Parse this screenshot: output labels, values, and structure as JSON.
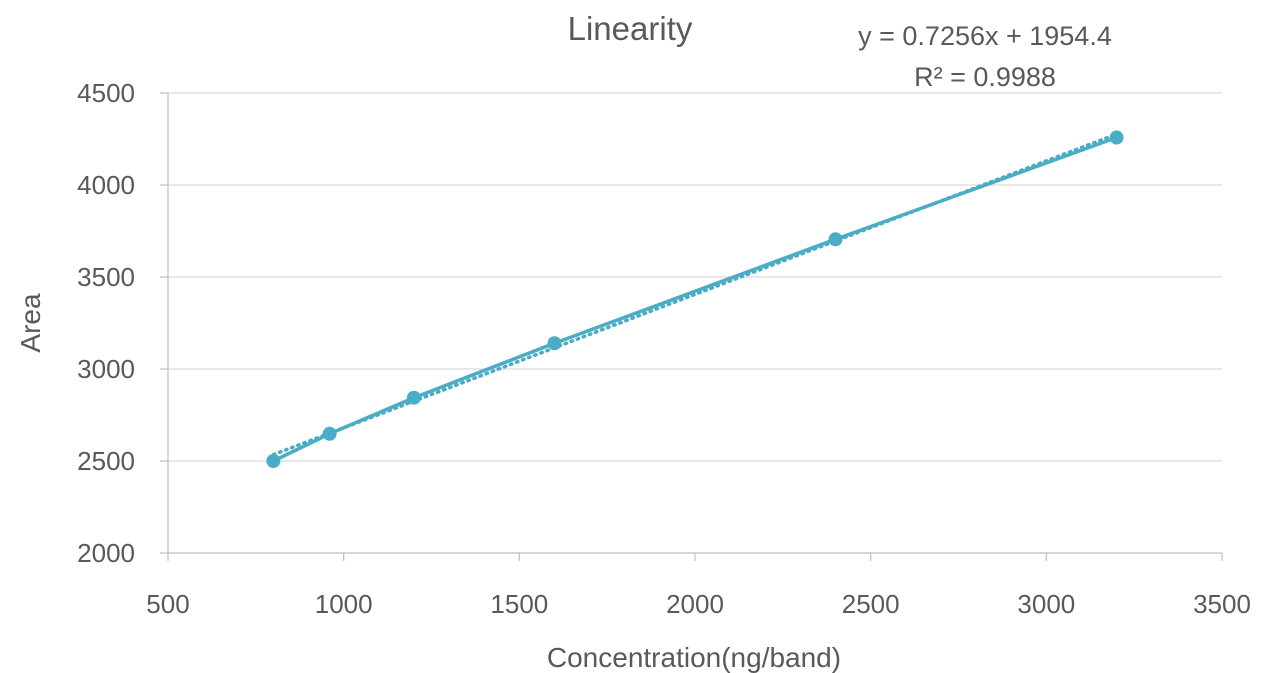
{
  "chart_data": {
    "type": "scatter",
    "title": "Linearity",
    "xlabel": "Concentration(ng/band)",
    "ylabel": "Area",
    "xlim": [
      500,
      3500
    ],
    "ylim": [
      2000,
      4500
    ],
    "xticks": [
      500,
      1000,
      1500,
      2000,
      2500,
      3000,
      3500
    ],
    "yticks": [
      2000,
      2500,
      3000,
      3500,
      4000,
      4500
    ],
    "grid": "horizontal",
    "series": [
      {
        "x": [
          800,
          960,
          1200,
          1600,
          2400,
          3200
        ],
        "y": [
          2500,
          2648,
          2844,
          3140,
          3705,
          4258
        ],
        "color": "#4BACC6",
        "style": "line-with-markers"
      }
    ],
    "trendline": {
      "type": "linear",
      "slope": 0.7256,
      "intercept": 1954.4,
      "style": "dotted",
      "color": "#4BACC6",
      "equation_text": "y = 0.7256x + 1954.4",
      "r2_text": "R² = 0.9988"
    }
  }
}
